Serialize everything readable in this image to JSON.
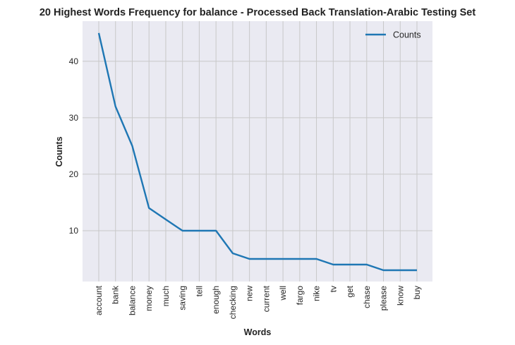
{
  "chart_data": {
    "type": "line",
    "title": "20 Highest Words Frequency for balance - Processed Back Translation-Arabic Testing Set",
    "xlabel": "Words",
    "ylabel": "Counts",
    "categories": [
      "account",
      "bank",
      "balance",
      "money",
      "much",
      "saving",
      "tell",
      "enough",
      "checking",
      "new",
      "current",
      "well",
      "fargo",
      "nike",
      "tv",
      "get",
      "chase",
      "please",
      "know",
      "buy"
    ],
    "series": [
      {
        "name": "Counts",
        "values": [
          45,
          32,
          25,
          14,
          12,
          10,
          10,
          10,
          6,
          5,
          5,
          5,
          5,
          5,
          4,
          4,
          4,
          3,
          3,
          3
        ],
        "color": "#1f77b4"
      }
    ],
    "ylim": [
      1,
      47.1
    ],
    "yticks": [
      10,
      20,
      30,
      40
    ],
    "grid": true,
    "legend": "top-right",
    "background": "#eaeaf2",
    "grid_color": "#c8c8c8"
  }
}
